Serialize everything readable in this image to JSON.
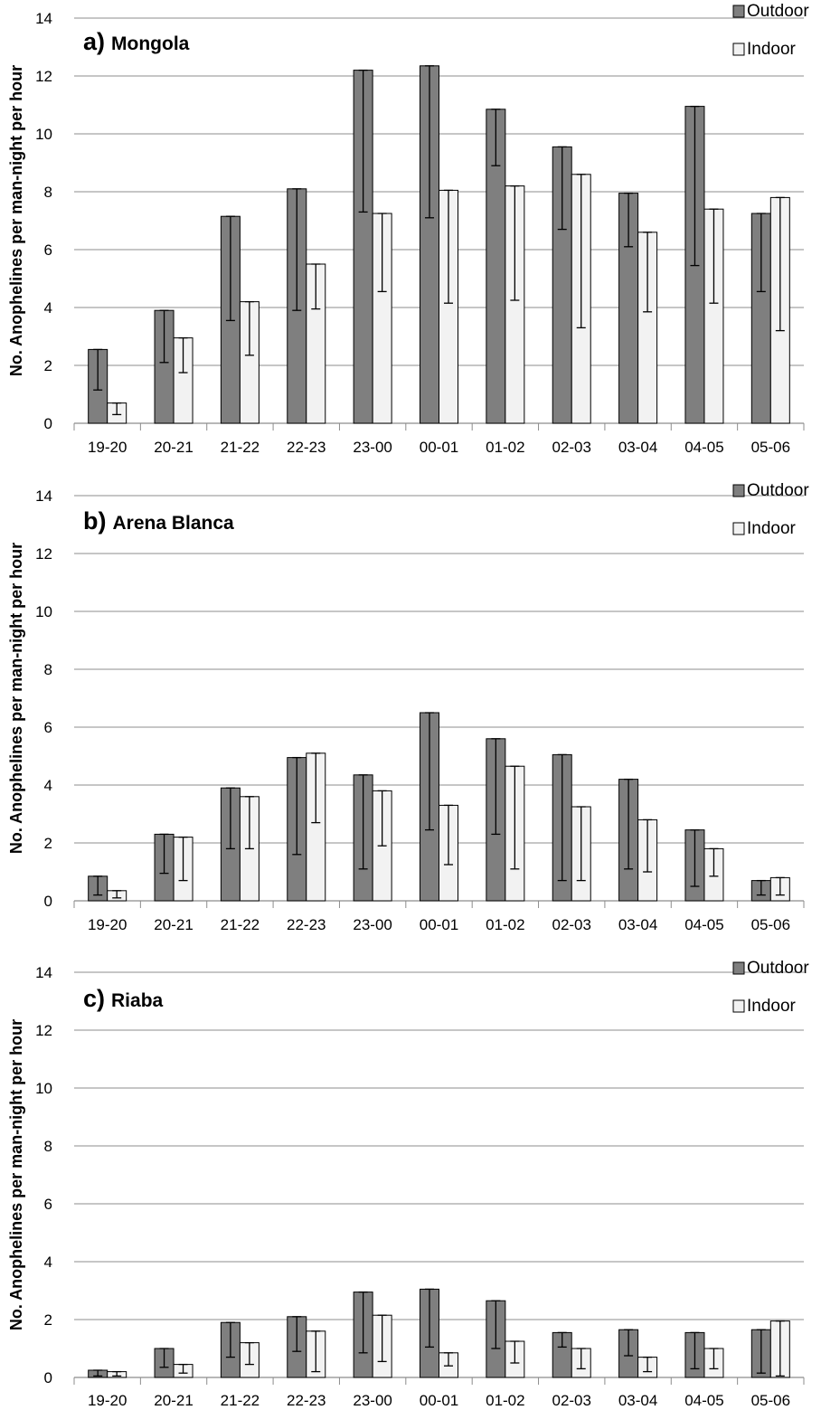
{
  "colors": {
    "outdoor": "#7f7f7f",
    "indoor": "#f2f2f2",
    "bar_stroke": "#000000",
    "grid": "#8c8c8c",
    "axis": "#8c8c8c",
    "error_bar": "#000000"
  },
  "chart_data": [
    {
      "type": "bar",
      "title": "a) Mongola",
      "title_prefix": "a)",
      "title_name": "Mongola",
      "ylabel": "No. Anophelines per man-night per hour",
      "xlabel": "",
      "ylim": [
        0,
        14
      ],
      "y_ticks": [
        "0",
        "2",
        "4",
        "6",
        "8",
        "10",
        "12",
        "14"
      ],
      "grid": true,
      "legend_position": "top-right",
      "categories": [
        "19-20",
        "20-21",
        "21-22",
        "22-23",
        "23-00",
        "00-01",
        "01-02",
        "02-03",
        "03-04",
        "04-05",
        "05-06"
      ],
      "series": [
        {
          "name": "Outdoor",
          "values": [
            2.55,
            3.9,
            7.15,
            8.1,
            12.2,
            12.35,
            10.85,
            9.55,
            7.95,
            10.95,
            7.25
          ],
          "error_low": [
            1.15,
            2.1,
            3.55,
            3.9,
            7.3,
            7.1,
            8.9,
            6.7,
            6.1,
            5.45,
            4.55
          ]
        },
        {
          "name": "Indoor",
          "values": [
            0.7,
            2.95,
            4.2,
            5.5,
            7.25,
            8.05,
            8.2,
            8.6,
            6.6,
            7.4,
            7.8
          ],
          "error_low": [
            0.3,
            1.75,
            2.35,
            3.95,
            4.55,
            4.15,
            4.25,
            3.3,
            3.85,
            4.15,
            3.2
          ]
        }
      ]
    },
    {
      "type": "bar",
      "title": "b) Arena Blanca",
      "title_prefix": "b)",
      "title_name": "Arena Blanca",
      "ylabel": "No. Anophelines per man-night per hour",
      "xlabel": "",
      "ylim": [
        0,
        14
      ],
      "y_ticks": [
        "0",
        "2",
        "4",
        "6",
        "8",
        "10",
        "12",
        "14"
      ],
      "grid": true,
      "legend_position": "top-right",
      "categories": [
        "19-20",
        "20-21",
        "21-22",
        "22-23",
        "23-00",
        "00-01",
        "01-02",
        "02-03",
        "03-04",
        "04-05",
        "05-06"
      ],
      "series": [
        {
          "name": "Outdoor",
          "values": [
            0.85,
            2.3,
            3.9,
            4.95,
            4.35,
            6.5,
            5.6,
            5.05,
            4.2,
            2.45,
            0.7
          ],
          "error_low": [
            0.2,
            0.95,
            1.8,
            1.6,
            1.1,
            2.45,
            2.3,
            0.7,
            1.1,
            0.5,
            0.2
          ]
        },
        {
          "name": "Indoor",
          "values": [
            0.35,
            2.2,
            3.6,
            5.1,
            3.8,
            3.3,
            4.65,
            3.25,
            2.8,
            1.8,
            0.8
          ],
          "error_low": [
            0.1,
            0.7,
            1.8,
            2.7,
            1.9,
            1.25,
            1.1,
            0.7,
            1.0,
            0.85,
            0.2
          ]
        }
      ]
    },
    {
      "type": "bar",
      "title": "c) Riaba",
      "title_prefix": "c)",
      "title_name": "Riaba",
      "ylabel": "No. Anophelines per man-night per hour",
      "xlabel": "",
      "ylim": [
        0,
        14
      ],
      "y_ticks": [
        "0",
        "2",
        "4",
        "6",
        "8",
        "10",
        "12",
        "14"
      ],
      "grid": true,
      "legend_position": "top-right",
      "categories": [
        "19-20",
        "20-21",
        "21-22",
        "22-23",
        "23-00",
        "00-01",
        "01-02",
        "02-03",
        "03-04",
        "04-05",
        "05-06"
      ],
      "series": [
        {
          "name": "Outdoor",
          "values": [
            0.25,
            1.0,
            1.9,
            2.1,
            2.95,
            3.05,
            2.65,
            1.55,
            1.65,
            1.55,
            1.65
          ],
          "error_low": [
            0.05,
            0.35,
            0.7,
            0.9,
            0.85,
            1.05,
            1.0,
            1.05,
            0.75,
            0.3,
            0.15
          ]
        },
        {
          "name": "Indoor",
          "values": [
            0.2,
            0.45,
            1.2,
            1.6,
            2.15,
            0.85,
            1.25,
            1.0,
            0.7,
            1.0,
            1.95
          ],
          "error_low": [
            0.05,
            0.15,
            0.45,
            0.2,
            0.55,
            0.4,
            0.5,
            0.3,
            0.2,
            0.3,
            0.05
          ]
        }
      ]
    }
  ]
}
